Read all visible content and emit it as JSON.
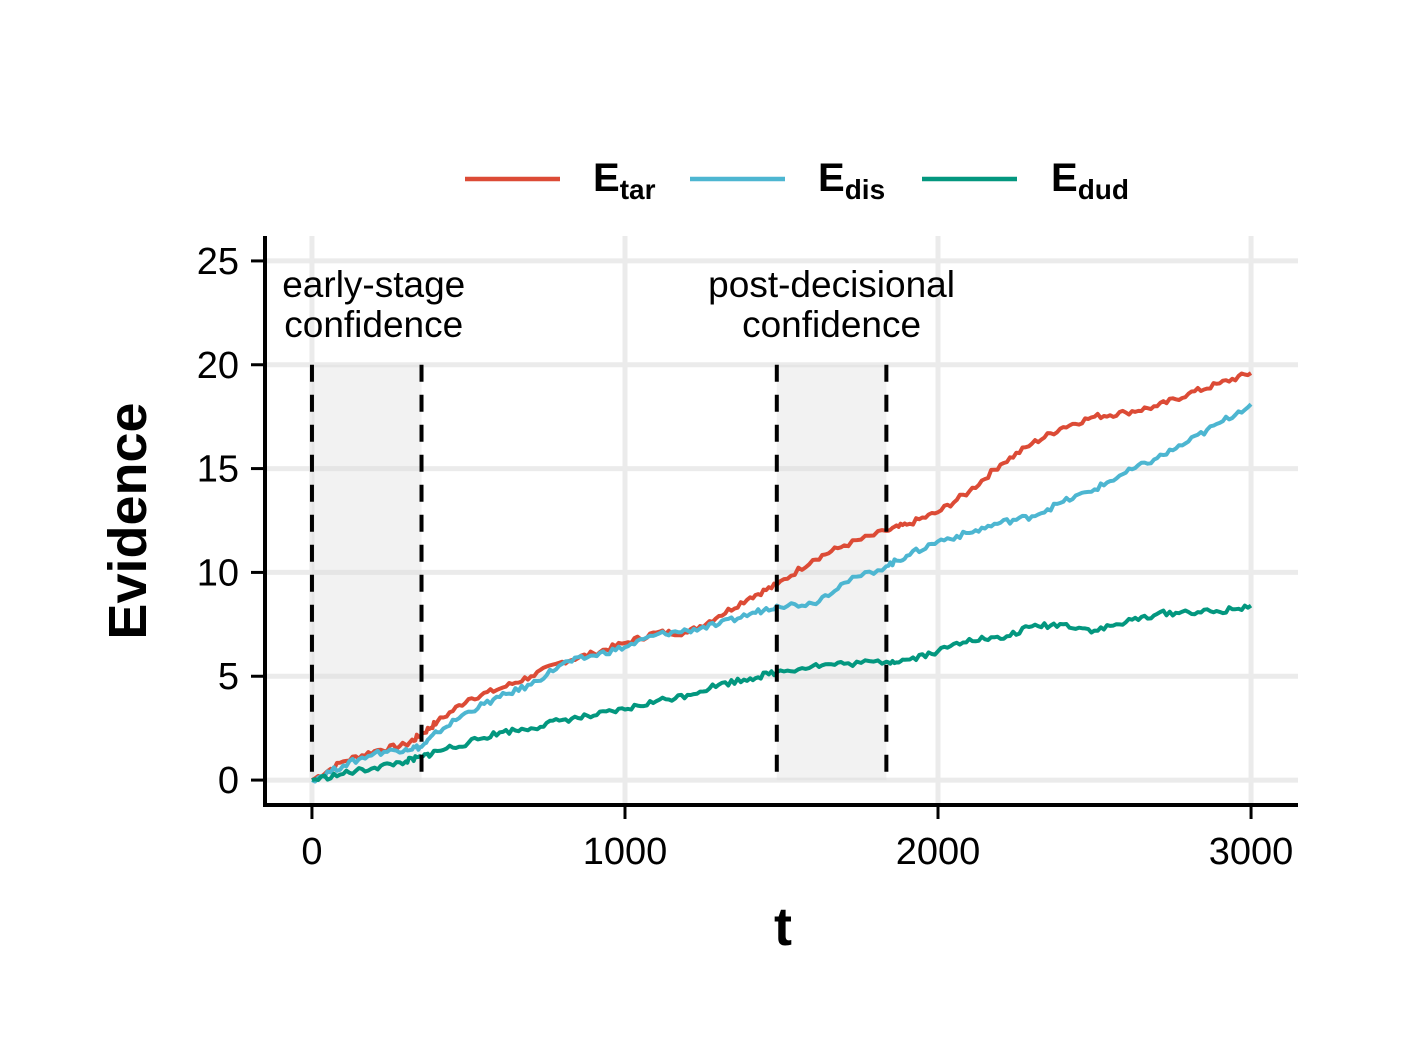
{
  "chart_data": {
    "type": "line",
    "xlabel": "t",
    "ylabel": "Evidence",
    "xlim": [
      -150,
      3150
    ],
    "ylim": [
      -1.2,
      26.2
    ],
    "x_ticks": [
      0,
      1000,
      2000,
      3000
    ],
    "x_tick_labels": [
      "0",
      "1000",
      "2000",
      "3000"
    ],
    "y_ticks": [
      0,
      5,
      10,
      15,
      20,
      25
    ],
    "y_tick_labels": [
      "0",
      "5",
      "10",
      "15",
      "20",
      "25"
    ],
    "grid": true,
    "legend_position": "top",
    "legend": [
      {
        "main": "E",
        "sub": "tar",
        "color": "#DC4B36"
      },
      {
        "main": "E",
        "sub": "dis",
        "color": "#4DB6D1"
      },
      {
        "main": "E",
        "sub": "dud",
        "color": "#03977F"
      }
    ],
    "shaded_regions": [
      {
        "x": [
          0,
          350
        ],
        "labels": [
          "early-stage",
          "confidence"
        ]
      },
      {
        "x": [
          1485,
          1835
        ],
        "labels": [
          "post-decisional",
          "confidence"
        ]
      }
    ],
    "vlines": [
      0,
      350,
      1485,
      1835
    ],
    "series": [
      {
        "sub": "tar",
        "color": "#DC4B36",
        "x": [
          0,
          100,
          200,
          300,
          350,
          400,
          500,
          600,
          700,
          800,
          900,
          1000,
          1100,
          1200,
          1300,
          1400,
          1485,
          1600,
          1700,
          1835,
          1900,
          2000,
          2100,
          2200,
          2300,
          2400,
          2500,
          2600,
          2700,
          2800,
          2900,
          3000
        ],
        "values": [
          0.0,
          0.9,
          1.4,
          1.7,
          2.2,
          2.8,
          3.9,
          4.4,
          5.0,
          5.7,
          6.1,
          6.6,
          7.1,
          7.1,
          7.9,
          8.8,
          9.4,
          10.6,
          11.3,
          12.0,
          12.3,
          12.9,
          13.9,
          15.2,
          16.2,
          17.0,
          17.5,
          17.7,
          18.0,
          18.6,
          19.1,
          19.6
        ]
      },
      {
        "sub": "dis",
        "color": "#4DB6D1",
        "x": [
          0,
          100,
          200,
          300,
          350,
          400,
          500,
          600,
          700,
          800,
          900,
          1000,
          1100,
          1200,
          1300,
          1400,
          1485,
          1600,
          1700,
          1835,
          1900,
          2000,
          2100,
          2200,
          2300,
          2400,
          2500,
          2600,
          2700,
          2800,
          2900,
          3000
        ],
        "values": [
          0.0,
          0.7,
          1.3,
          1.5,
          1.6,
          2.3,
          3.3,
          4.0,
          4.6,
          5.6,
          6.0,
          6.4,
          7.0,
          7.2,
          7.5,
          8.0,
          8.4,
          8.5,
          9.5,
          10.3,
          10.8,
          11.5,
          11.9,
          12.4,
          12.7,
          13.4,
          14.0,
          14.8,
          15.5,
          16.3,
          17.2,
          18.1
        ]
      },
      {
        "sub": "dud",
        "color": "#03977F",
        "x": [
          0,
          100,
          200,
          300,
          350,
          400,
          500,
          600,
          700,
          800,
          900,
          1000,
          1100,
          1200,
          1300,
          1400,
          1485,
          1600,
          1700,
          1835,
          1900,
          2000,
          2100,
          2200,
          2300,
          2400,
          2500,
          2600,
          2700,
          2800,
          2900,
          3000
        ],
        "values": [
          0.0,
          0.3,
          0.6,
          0.9,
          1.1,
          1.4,
          1.8,
          2.3,
          2.5,
          2.9,
          3.1,
          3.4,
          3.8,
          4.1,
          4.6,
          4.9,
          5.2,
          5.5,
          5.6,
          5.7,
          5.8,
          6.2,
          6.8,
          6.8,
          7.4,
          7.5,
          7.2,
          7.6,
          8.0,
          8.1,
          8.1,
          8.4
        ]
      }
    ]
  }
}
